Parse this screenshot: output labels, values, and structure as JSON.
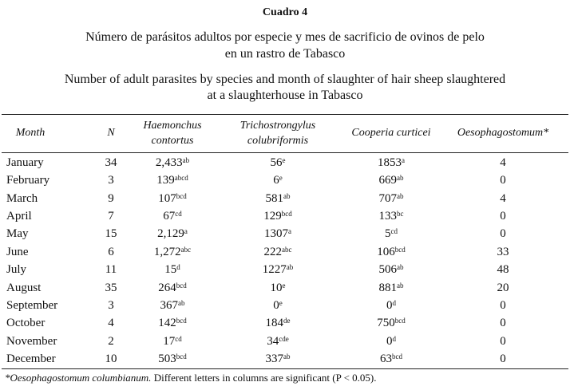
{
  "header": {
    "label": "Cuadro 4",
    "title_es": [
      "Número de parásitos adultos por especie y mes de sacrificio de ovinos de pelo",
      "en un rastro de Tabasco"
    ],
    "title_en": [
      "Number of adult parasites by species and month of slaughter of hair sheep slaughtered",
      "at a slaughterhouse in Tabasco"
    ]
  },
  "table": {
    "columns": [
      [
        "Month"
      ],
      [
        "N"
      ],
      [
        "Haemonchus",
        "contortus"
      ],
      [
        "Trichostrongylus",
        "colubriformis"
      ],
      [
        "Cooperia curticei"
      ],
      [
        "Oesophagostomum*"
      ]
    ],
    "rows": [
      [
        "January",
        "34",
        {
          "value": "2,433",
          "sup": "ab"
        },
        {
          "value": "56",
          "sup": "e"
        },
        {
          "value": "1853",
          "sup": "a"
        },
        "4"
      ],
      [
        "February",
        "3",
        {
          "value": "139",
          "sup": "abcd"
        },
        {
          "value": "6",
          "sup": "e"
        },
        {
          "value": "669",
          "sup": "ab"
        },
        "0"
      ],
      [
        "March",
        "9",
        {
          "value": "107",
          "sup": "bcd"
        },
        {
          "value": "581",
          "sup": "ab"
        },
        {
          "value": "707",
          "sup": "ab"
        },
        "4"
      ],
      [
        "April",
        "7",
        {
          "value": "67",
          "sup": "cd"
        },
        {
          "value": "129",
          "sup": "bcd"
        },
        {
          "value": "133",
          "sup": "bc"
        },
        "0"
      ],
      [
        "May",
        "15",
        {
          "value": "2,129",
          "sup": "a"
        },
        {
          "value": "1307",
          "sup": "a"
        },
        {
          "value": "5",
          "sup": "cd"
        },
        "0"
      ],
      [
        "June",
        "6",
        {
          "value": "1,272",
          "sup": "abc"
        },
        {
          "value": "222",
          "sup": "abc"
        },
        {
          "value": "106",
          "sup": "bcd"
        },
        "33"
      ],
      [
        "July",
        "11",
        {
          "value": "15",
          "sup": "d"
        },
        {
          "value": "1227",
          "sup": "ab"
        },
        {
          "value": "506",
          "sup": "ab"
        },
        "48"
      ],
      [
        "August",
        "35",
        {
          "value": "264",
          "sup": "bcd"
        },
        {
          "value": "10",
          "sup": "e"
        },
        {
          "value": "881",
          "sup": "ab"
        },
        "20"
      ],
      [
        "September",
        "3",
        {
          "value": "367",
          "sup": "ab"
        },
        {
          "value": "0",
          "sup": "e"
        },
        {
          "value": "0",
          "sup": "d"
        },
        "0"
      ],
      [
        "October",
        "4",
        {
          "value": "142",
          "sup": "bcd"
        },
        {
          "value": "184",
          "sup": "de"
        },
        {
          "value": "750",
          "sup": "bcd"
        },
        "0"
      ],
      [
        "November",
        "2",
        {
          "value": "17",
          "sup": "cd"
        },
        {
          "value": "34",
          "sup": "cde"
        },
        {
          "value": "0",
          "sup": "d"
        },
        "0"
      ],
      [
        "December",
        "10",
        {
          "value": "503",
          "sup": "bcd"
        },
        {
          "value": "337",
          "sup": "ab"
        },
        {
          "value": "63",
          "sup": "bcd"
        },
        "0"
      ]
    ]
  },
  "footnote": {
    "species": "*Oesophagostomum columbianum.",
    "text": " Different letters in columns are significant (P < 0.05)."
  }
}
